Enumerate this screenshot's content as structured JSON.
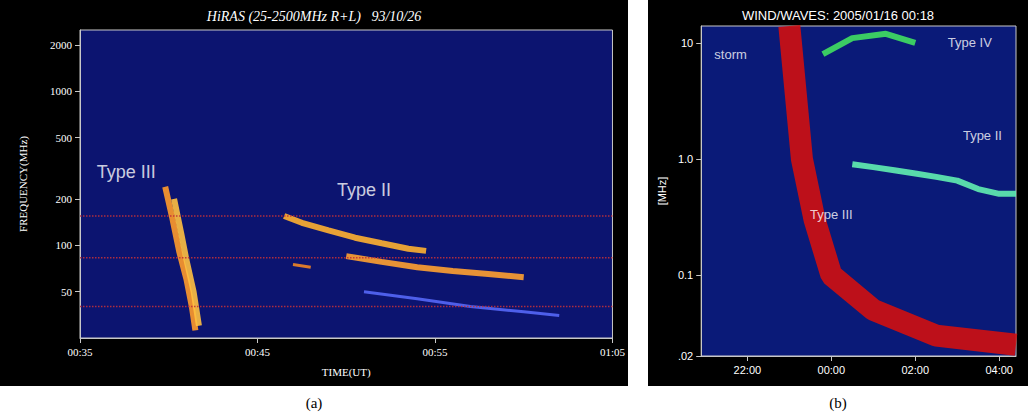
{
  "chart_data": [
    {
      "type": "line",
      "caption": "(a)",
      "title": "HiRAS (25-2500MHz R+L)   93/10/26",
      "xlabel": "TIME(UT)",
      "ylabel": "FREQUENCY(MHz)",
      "log": "y",
      "grid": false,
      "xlim": [
        35,
        65
      ],
      "xticks": [
        {
          "value": 35,
          "label": "00:35"
        },
        {
          "value": 45,
          "label": "00:45"
        },
        {
          "value": 55,
          "label": "00:55"
        },
        {
          "value": 65,
          "label": "01:05"
        }
      ],
      "ylim": [
        25,
        2500
      ],
      "yticks": [
        50,
        100,
        200,
        500,
        1000,
        2000
      ],
      "series": [
        {
          "color": "#ff9a2a",
          "line_style": "medium",
          "x": [
            39.8,
            40.2,
            40.6,
            41.0,
            41.3,
            41.5
          ],
          "values": [
            240,
            150,
            90,
            60,
            40,
            28
          ]
        },
        {
          "color": "#ffc040",
          "line_style": "medium",
          "x": [
            40.3,
            40.7,
            41.0,
            41.4,
            41.7
          ],
          "values": [
            200,
            120,
            80,
            50,
            30
          ]
        },
        {
          "color": "#ffb030",
          "line_style": "medium",
          "x": [
            46.5,
            47.5,
            49,
            50.5,
            52,
            53.5,
            54.5
          ],
          "values": [
            155,
            140,
            125,
            112,
            103,
            95,
            92
          ]
        },
        {
          "color": "#ff8c20",
          "line_style": "thin",
          "x": [
            47,
            48
          ],
          "values": [
            75,
            72
          ]
        },
        {
          "color": "#ffa030",
          "line_style": "medium",
          "x": [
            50,
            52,
            54,
            56,
            58,
            60
          ],
          "values": [
            85,
            78,
            72,
            68,
            65,
            62
          ]
        },
        {
          "color": "#5a6cff",
          "line_style": "thin",
          "x": [
            51,
            54,
            57,
            60,
            62
          ],
          "values": [
            50,
            45,
            40,
            37,
            35
          ]
        },
        {
          "color": "#c0303a",
          "line_style": "dotted",
          "x": [
            35,
            65
          ],
          "values": [
            155,
            155
          ]
        },
        {
          "color": "#c0303a",
          "line_style": "dotted",
          "x": [
            35,
            65
          ],
          "values": [
            83,
            83
          ]
        },
        {
          "color": "#c0303a",
          "line_style": "dotted",
          "x": [
            35,
            65
          ],
          "values": [
            40,
            40
          ]
        }
      ],
      "annotations": [
        {
          "text": "Type III",
          "x": 37.6,
          "y": 300
        },
        {
          "text": "Type II",
          "x": 51,
          "y": 230
        }
      ]
    },
    {
      "type": "line",
      "caption": "(b)",
      "title": "WIND/WAVES: 2005/01/16 00:18",
      "ylabel": "[MHz]",
      "log": "y",
      "grid": false,
      "xlim": [
        20.9,
        28.4
      ],
      "xticks": [
        {
          "value": 22,
          "label": "22:00"
        },
        {
          "value": 24,
          "label": "00:00"
        },
        {
          "value": 26,
          "label": "02:00"
        },
        {
          "value": 28,
          "label": "04:00"
        }
      ],
      "ylim": [
        0.02,
        14
      ],
      "yticks": [
        {
          "value": 0.02,
          "label": ".02"
        },
        0.1,
        {
          "value": 1,
          "label": "1.0"
        },
        10
      ],
      "series": [
        {
          "color": "#d01010",
          "line_style": "thick",
          "x": [
            23.0,
            23.3,
            23.6,
            24.0,
            25.0,
            26.5,
            28.4
          ],
          "values": [
            14,
            1,
            0.3,
            0.1,
            0.05,
            0.03,
            0.025
          ]
        },
        {
          "color": "#60f0b0",
          "line_style": "medium",
          "x": [
            24.5,
            25,
            25.5,
            26,
            26.5,
            27,
            27.5,
            28,
            28.4
          ],
          "values": [
            0.9,
            0.85,
            0.8,
            0.75,
            0.7,
            0.65,
            0.55,
            0.5,
            0.5
          ]
        },
        {
          "color": "#40e060",
          "line_style": "medium",
          "x": [
            23.8,
            24.5,
            25.3,
            26
          ],
          "values": [
            8,
            11,
            12,
            10
          ]
        }
      ],
      "annotations": [
        {
          "text": "storm",
          "x": 21.6,
          "y": 8
        },
        {
          "text": "Type IV",
          "x": 27.3,
          "y": 10
        },
        {
          "text": "Type II",
          "x": 27.6,
          "y": 1.6
        },
        {
          "text": "Type III",
          "x": 24.0,
          "y": 0.33
        }
      ]
    }
  ]
}
